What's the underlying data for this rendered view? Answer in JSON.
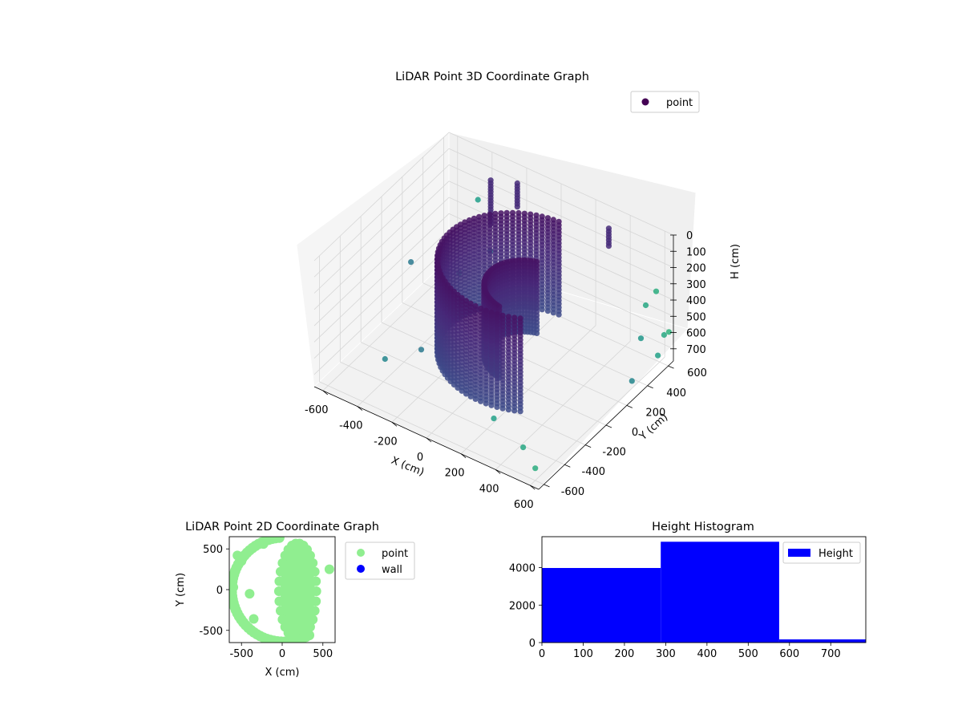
{
  "figure": {
    "background": "#ffffff"
  },
  "chart_data": [
    {
      "id": "lidar3d",
      "type": "scatter",
      "projection": "3d",
      "title": "LiDAR Point 3D Coordinate Graph",
      "xlabel": "X (cm)",
      "ylabel": "Y (cm)",
      "zlabel": "H (cm)",
      "xlim": [
        -650,
        650
      ],
      "ylim": [
        -650,
        650
      ],
      "zlim": [
        775,
        0
      ],
      "z_inverted": true,
      "xticks": [
        "-600",
        "-400",
        "-200",
        "0",
        "200",
        "400",
        "600"
      ],
      "yticks": [
        "-600",
        "-400",
        "-200",
        "0",
        "200",
        "400",
        "600"
      ],
      "zticks": [
        "0",
        "100",
        "200",
        "300",
        "400",
        "500",
        "600",
        "700"
      ],
      "grid": true,
      "colormap": "viridis",
      "legend": {
        "position": "top-right",
        "entries": [
          {
            "label": "point",
            "color": "#440154"
          }
        ]
      },
      "structures": [
        {
          "kind": "arc",
          "center_x": 150,
          "center_y": 20,
          "radius": 420,
          "angle_from_deg": 95,
          "angle_to_deg": 300,
          "h_from": 50,
          "h_to": 640
        },
        {
          "kind": "arc",
          "center_x": 200,
          "center_y": 0,
          "radius": 220,
          "angle_from_deg": 110,
          "angle_to_deg": 260,
          "h_from": 150,
          "h_to": 600
        },
        {
          "kind": "column",
          "x": -330,
          "y": 520,
          "h_from": 60,
          "h_to": 330
        },
        {
          "kind": "column",
          "x": -200,
          "y": 560,
          "h_from": 40,
          "h_to": 200
        },
        {
          "kind": "column",
          "x": 330,
          "y": 560,
          "h_from": 60,
          "h_to": 180
        }
      ],
      "outliers": [
        {
          "x": 600,
          "y": -600,
          "h": 700
        },
        {
          "x": 500,
          "y": -550,
          "h": 650
        },
        {
          "x": 300,
          "y": -500,
          "h": 600
        },
        {
          "x": 650,
          "y": 500,
          "h": 650
        },
        {
          "x": 620,
          "y": 300,
          "h": 700
        },
        {
          "x": -500,
          "y": 500,
          "h": 700
        },
        {
          "x": -600,
          "y": 200,
          "h": 500
        },
        {
          "x": -450,
          "y": -300,
          "h": 720
        },
        {
          "x": -380,
          "y": 480,
          "h": 180
        },
        {
          "x": 550,
          "y": 550,
          "h": 420
        },
        {
          "x": 600,
          "y": 420,
          "h": 520
        },
        {
          "x": 580,
          "y": 600,
          "h": 350
        },
        {
          "x": 650,
          "y": 560,
          "h": 560
        },
        {
          "x": 630,
          "y": 640,
          "h": 600
        },
        {
          "x": -200,
          "y": 300,
          "h": 300
        },
        {
          "x": -300,
          "y": -200,
          "h": 650
        }
      ]
    },
    {
      "id": "lidar2d",
      "type": "scatter",
      "title": "LiDAR Point 2D Coordinate Graph",
      "xlabel": "X (cm)",
      "ylabel": "Y (cm)",
      "xlim": [
        -650,
        650
      ],
      "ylim": [
        -650,
        650
      ],
      "xticks": [
        "-500",
        "0",
        "500"
      ],
      "yticks": [
        "-500",
        "0",
        "500"
      ],
      "legend": {
        "position": "outside-right",
        "entries": [
          {
            "label": "point",
            "color": "#90ee90"
          },
          {
            "label": "wall",
            "color": "#0000ff"
          }
        ]
      },
      "series": [
        {
          "name": "point",
          "color": "#90ee90",
          "shape": "crescent",
          "center": [
            190,
            -20
          ],
          "rx": 210,
          "ry": 600,
          "outer_ring_radius": 640
        },
        {
          "name": "wall",
          "color": "#0000ff",
          "values": []
        }
      ]
    },
    {
      "id": "histogram",
      "type": "bar",
      "title": "Height Histogram",
      "xlim": [
        0,
        785
      ],
      "ylim": [
        0,
        5650
      ],
      "xticks": [
        "0",
        "100",
        "200",
        "300",
        "400",
        "500",
        "600",
        "700"
      ],
      "yticks": [
        "0",
        "2000",
        "4000"
      ],
      "color": "#0000ff",
      "legend": {
        "position": "top-right",
        "entries": [
          {
            "label": "Height",
            "color": "#0000ff"
          }
        ]
      },
      "bins": [
        {
          "from": 0,
          "to": 288,
          "count": 3980
        },
        {
          "from": 288,
          "to": 575,
          "count": 5380
        },
        {
          "from": 575,
          "to": 785,
          "count": 170
        }
      ]
    }
  ]
}
